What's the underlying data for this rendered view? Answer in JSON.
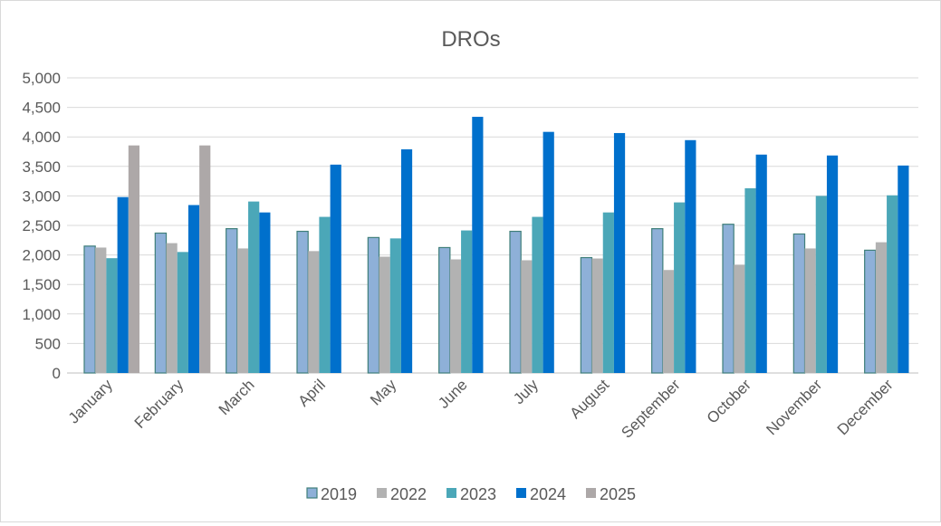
{
  "chart_data": {
    "type": "bar",
    "title": "DROs",
    "xlabel": "",
    "ylabel": "",
    "ylim": [
      0,
      5000
    ],
    "yticks": [
      "0",
      "500",
      "1,000",
      "1,500",
      "2,000",
      "2,500",
      "3,000",
      "3,500",
      "4,000",
      "4,500",
      "5,000"
    ],
    "ytick_values": [
      0,
      500,
      1000,
      1500,
      2000,
      2500,
      3000,
      3500,
      4000,
      4500,
      5000
    ],
    "grid": true,
    "legend_position": "bottom",
    "categories": [
      "January",
      "February",
      "March",
      "April",
      "May",
      "June",
      "July",
      "August",
      "September",
      "October",
      "November",
      "December"
    ],
    "series": [
      {
        "name": "2019",
        "color": "#8EB0D8",
        "values": [
          2150,
          2370,
          2445,
          2400,
          2295,
          2125,
          2400,
          1955,
          2445,
          2520,
          2355,
          2080
        ]
      },
      {
        "name": "2022",
        "color": "#B2B2B2",
        "values": [
          2125,
          2200,
          2110,
          2065,
          1970,
          1925,
          1910,
          1940,
          1745,
          1835,
          2110,
          2215
        ]
      },
      {
        "name": "2023",
        "color": "#4BA7B8",
        "values": [
          1945,
          2050,
          2905,
          2645,
          2280,
          2415,
          2645,
          2720,
          2890,
          3130,
          3000,
          3010
        ]
      },
      {
        "name": "2024",
        "color": "#0070CC",
        "values": [
          2980,
          2845,
          2720,
          3530,
          3790,
          4340,
          4085,
          4065,
          3945,
          3700,
          3685,
          3515
        ]
      },
      {
        "name": "2025",
        "color": "#ADA8A8",
        "values": [
          3855,
          3855,
          null,
          null,
          null,
          null,
          null,
          null,
          null,
          null,
          null,
          null
        ]
      }
    ]
  }
}
